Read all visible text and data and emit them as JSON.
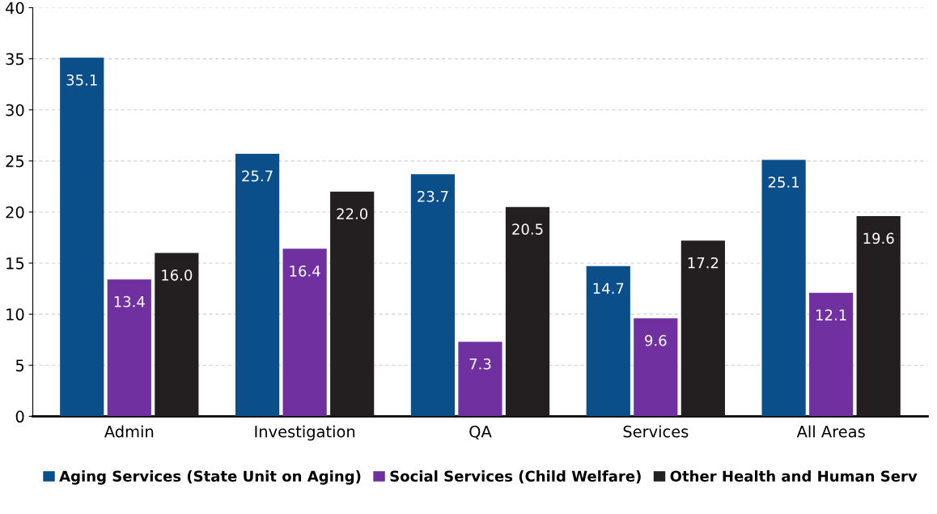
{
  "chart_data": {
    "type": "bar",
    "categories": [
      "Admin",
      "Investigation",
      "QA",
      "Services",
      "All Areas"
    ],
    "series": [
      {
        "name": "Aging Services (State Unit on Aging)",
        "color": "#0a4f8a",
        "values": [
          35.1,
          25.7,
          23.7,
          14.7,
          25.1
        ],
        "value_labels": [
          "35.1",
          "25.7",
          "23.7",
          "14.7",
          "25.1"
        ]
      },
      {
        "name": "Social Services (Child Welfare)",
        "color": "#7030a0",
        "values": [
          13.4,
          16.4,
          7.3,
          9.6,
          12.1
        ],
        "value_labels": [
          "13.4",
          "16.4",
          "7.3",
          "9.6",
          "12.1"
        ]
      },
      {
        "name": "Other Health and Human Serv",
        "color": "#231f20",
        "values": [
          16.0,
          22.0,
          20.5,
          17.2,
          19.6
        ],
        "value_labels": [
          "16.0",
          "22.0",
          "20.5",
          "17.2",
          "19.6"
        ]
      }
    ],
    "ylim": [
      0,
      40
    ],
    "yticks": [
      0,
      5,
      10,
      15,
      20,
      25,
      30,
      35,
      40
    ],
    "grid": "y",
    "legend": "bottom"
  }
}
